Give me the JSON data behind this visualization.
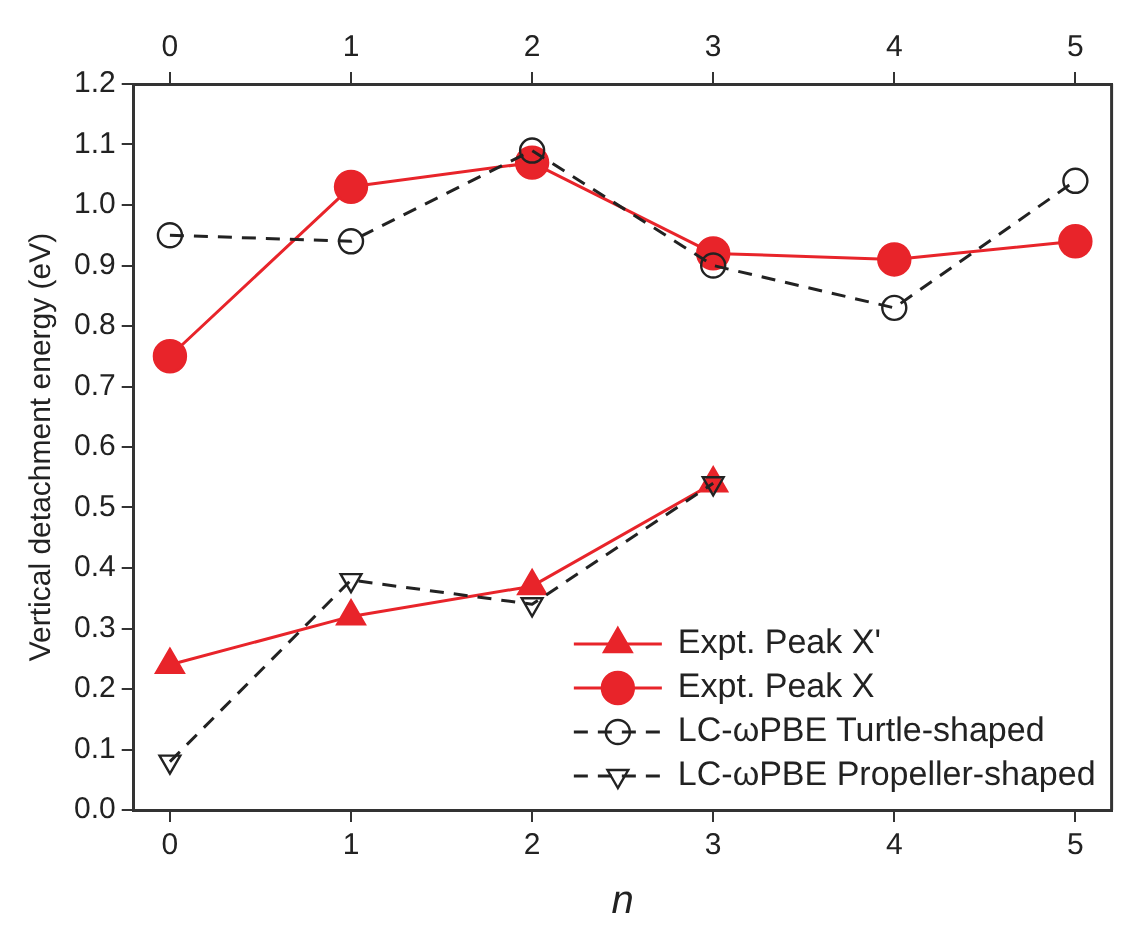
{
  "chart_data": {
    "type": "line",
    "xlabel": "n",
    "ylabel": "Vertical detachment energy (eV)",
    "x": [
      0,
      1,
      2,
      3,
      4,
      5
    ],
    "series": [
      {
        "name": "Expt. Peak X'",
        "color": "#e8242a",
        "marker": "triangle",
        "line_style": "solid",
        "x": [
          0,
          1,
          2,
          3
        ],
        "values": [
          0.24,
          0.32,
          0.37,
          0.54
        ]
      },
      {
        "name": "Expt. Peak X",
        "color": "#e8242a",
        "marker": "circle",
        "line_style": "solid",
        "values": [
          0.75,
          1.03,
          1.07,
          0.92,
          0.91,
          0.94
        ]
      },
      {
        "name": "LC-ωPBE Turtle-shaped",
        "color": "#222222",
        "marker": "circle",
        "line_style": "dashed",
        "values": [
          0.95,
          0.94,
          1.09,
          0.9,
          0.83,
          1.04
        ]
      },
      {
        "name": "LC-ωPBE Propeller-shaped",
        "color": "#222222",
        "marker": "triangle-down",
        "line_style": "dashed",
        "x": [
          0,
          1,
          2,
          3
        ],
        "values": [
          0.08,
          0.38,
          0.34,
          0.54
        ]
      }
    ],
    "xlim": [
      -0.2,
      5.2
    ],
    "xticks": [
      0,
      1,
      2,
      3,
      4,
      5
    ],
    "x2lim": [
      -0.2,
      5.2
    ],
    "x2ticks": [
      0,
      1,
      2,
      3,
      4,
      5
    ],
    "ylim": [
      0,
      1.2
    ],
    "yticks": [
      {
        "value": 0,
        "label": "0.0"
      },
      {
        "value": 0.1,
        "label": "0.1"
      },
      {
        "value": 0.2,
        "label": "0.2"
      },
      {
        "value": 0.3,
        "label": "0.3"
      },
      {
        "value": 0.4,
        "label": "0.4"
      },
      {
        "value": 0.5,
        "label": "0.5"
      },
      {
        "value": 0.6,
        "label": "0.6"
      },
      {
        "value": 0.7,
        "label": "0.7"
      },
      {
        "value": 0.8,
        "label": "0.8"
      },
      {
        "value": 0.9,
        "label": "0.9"
      },
      {
        "value": 1,
        "label": "1.0"
      },
      {
        "value": 1.1,
        "label": "1.1"
      },
      {
        "value": 1.2,
        "label": "1.2"
      }
    ],
    "grid": false,
    "legend": "bottom right"
  }
}
